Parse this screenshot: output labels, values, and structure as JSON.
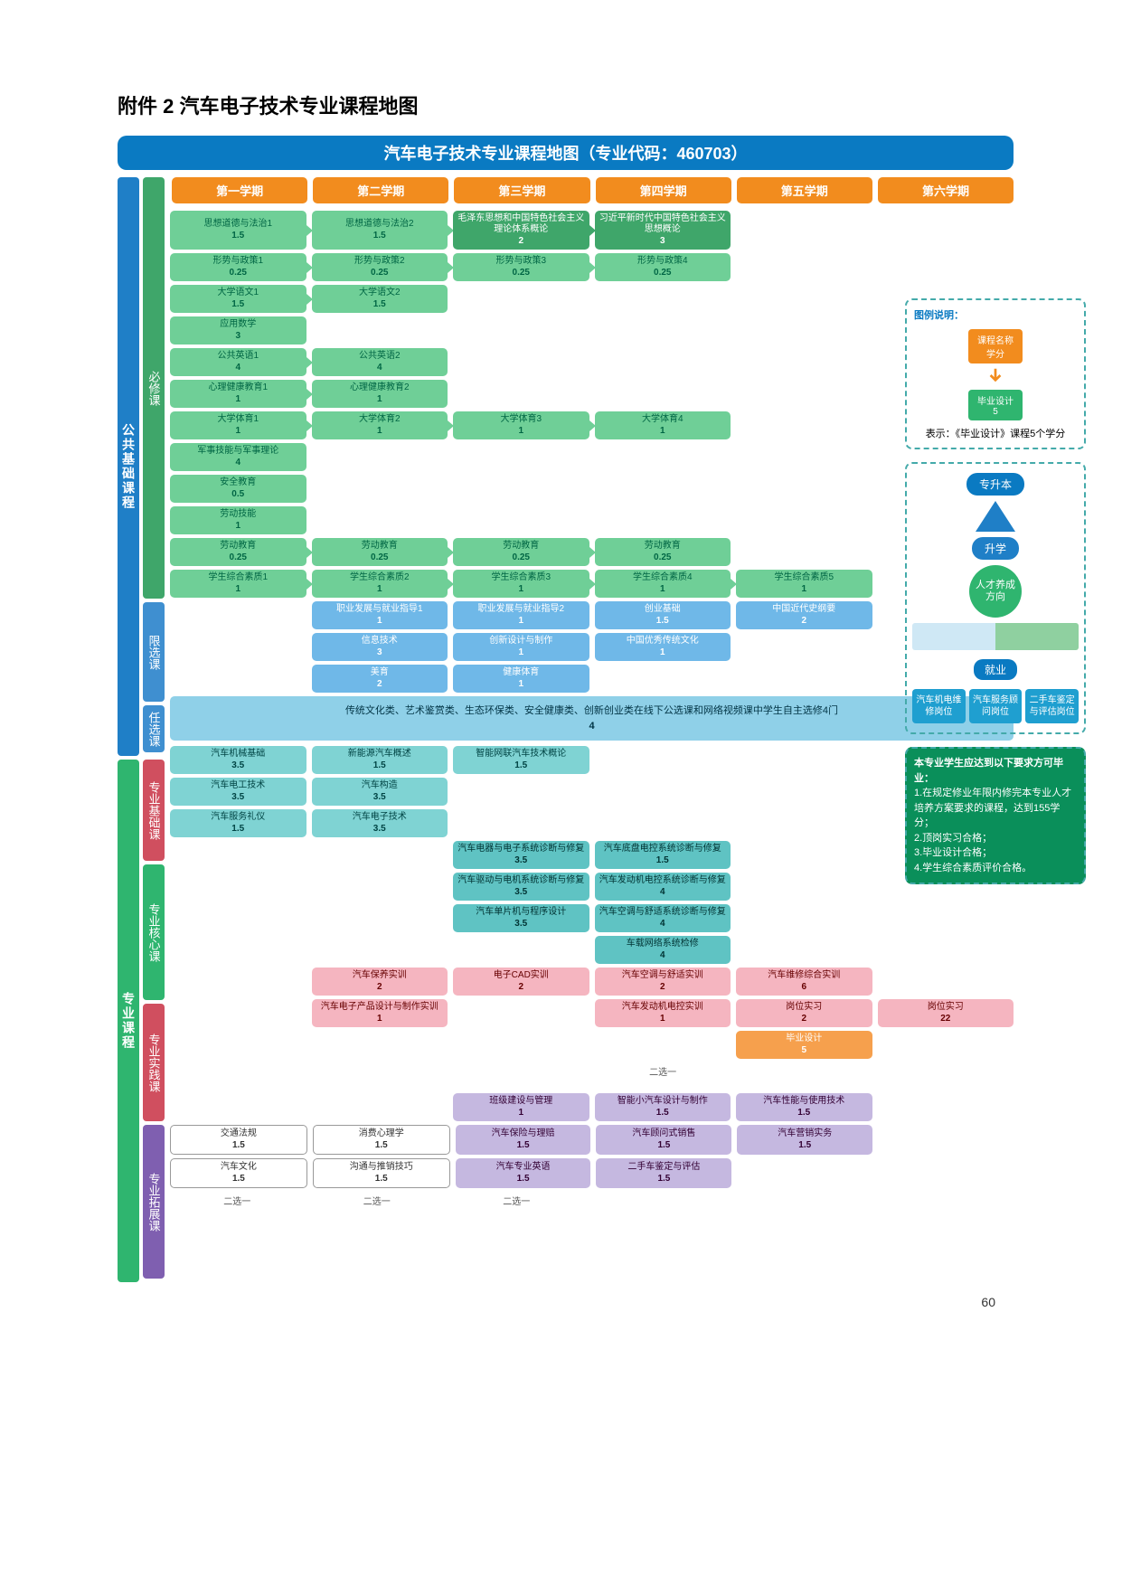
{
  "doc_title": "附件 2 汽车电子技术专业课程地图",
  "main_title": "汽车电子技术专业课程地图（专业代码：460703）",
  "page_number": "60",
  "semesters": [
    "第一学期",
    "第二学期",
    "第三学期",
    "第四学期",
    "第五学期",
    "第六学期"
  ],
  "rails": {
    "public": {
      "label": "公共基础课程",
      "color": "#1f7fc7"
    },
    "major": {
      "label": "专业课程",
      "color": "#2fb56f"
    },
    "sub": {
      "required": {
        "label": "必修课",
        "color": "#3fa66a"
      },
      "limited": {
        "label": "限选课",
        "color": "#3f8fd0"
      },
      "optional": {
        "label": "任选课",
        "color": "#3f8fd0"
      },
      "basic": {
        "label": "专业基础课",
        "color": "#d04f5f"
      },
      "core": {
        "label": "专业核心课",
        "color": "#2fb56f"
      },
      "practice": {
        "label": "专业实践课",
        "color": "#d04f5f"
      },
      "extend": {
        "label": "专业拓展课",
        "color": "#7f5fb0"
      }
    }
  },
  "colors": {
    "green": "#6fcf97",
    "dgreen": "#3fa66a",
    "teal": "#7fd3d3",
    "teal2": "#5fc3c3",
    "ltblue": "#a8d8f0",
    "pink": "#f5b5c0",
    "purple": "#c5b8e0",
    "blue": "#6fb8e8",
    "orange": "#f28c1e",
    "white": "#ffffff"
  },
  "required_rows": [
    [
      {
        "n": "思想道德与法治1",
        "c": "1.5",
        "cls": "c-green",
        "a": 1
      },
      {
        "n": "思想道德与法治2",
        "c": "1.5",
        "cls": "c-green",
        "a": 1
      },
      {
        "n": "毛泽东思想和中国特色社会主义理论体系概论",
        "c": "2",
        "cls": "c-dgreen",
        "a": 1
      },
      {
        "n": "习近平新时代中国特色社会主义思想概论",
        "c": "3",
        "cls": "c-dgreen"
      },
      null,
      null
    ],
    [
      {
        "n": "形势与政策1",
        "c": "0.25",
        "cls": "c-green",
        "a": 1
      },
      {
        "n": "形势与政策2",
        "c": "0.25",
        "cls": "c-green",
        "a": 1
      },
      {
        "n": "形势与政策3",
        "c": "0.25",
        "cls": "c-green",
        "a": 1
      },
      {
        "n": "形势与政策4",
        "c": "0.25",
        "cls": "c-green"
      },
      null,
      null
    ],
    [
      {
        "n": "大学语文1",
        "c": "1.5",
        "cls": "c-green",
        "a": 1
      },
      {
        "n": "大学语文2",
        "c": "1.5",
        "cls": "c-green"
      },
      null,
      null,
      null,
      null
    ],
    [
      {
        "n": "应用数学",
        "c": "3",
        "cls": "c-green"
      },
      null,
      null,
      null,
      null,
      null
    ],
    [
      {
        "n": "公共英语1",
        "c": "4",
        "cls": "c-green",
        "a": 1
      },
      {
        "n": "公共英语2",
        "c": "4",
        "cls": "c-green"
      },
      null,
      null,
      null,
      null
    ],
    [
      {
        "n": "心理健康教育1",
        "c": "1",
        "cls": "c-green",
        "a": 1
      },
      {
        "n": "心理健康教育2",
        "c": "1",
        "cls": "c-green"
      },
      null,
      null,
      null,
      null
    ],
    [
      {
        "n": "大学体育1",
        "c": "1",
        "cls": "c-green",
        "a": 1
      },
      {
        "n": "大学体育2",
        "c": "1",
        "cls": "c-green",
        "a": 1
      },
      {
        "n": "大学体育3",
        "c": "1",
        "cls": "c-green",
        "a": 1
      },
      {
        "n": "大学体育4",
        "c": "1",
        "cls": "c-green"
      },
      null,
      null
    ],
    [
      {
        "n": "军事技能与军事理论",
        "c": "4",
        "cls": "c-green"
      },
      null,
      null,
      null,
      null,
      null
    ],
    [
      {
        "n": "安全教育",
        "c": "0.5",
        "cls": "c-green"
      },
      null,
      null,
      null,
      null,
      null
    ],
    [
      {
        "n": "劳动技能",
        "c": "1",
        "cls": "c-green"
      },
      null,
      null,
      null,
      null,
      null
    ],
    [
      {
        "n": "劳动教育",
        "c": "0.25",
        "cls": "c-green",
        "a": 1
      },
      {
        "n": "劳动教育",
        "c": "0.25",
        "cls": "c-green",
        "a": 1
      },
      {
        "n": "劳动教育",
        "c": "0.25",
        "cls": "c-green",
        "a": 1
      },
      {
        "n": "劳动教育",
        "c": "0.25",
        "cls": "c-green"
      },
      null,
      null
    ],
    [
      {
        "n": "学生综合素质1",
        "c": "1",
        "cls": "c-green",
        "a": 1
      },
      {
        "n": "学生综合素质2",
        "c": "1",
        "cls": "c-green",
        "a": 1
      },
      {
        "n": "学生综合素质3",
        "c": "1",
        "cls": "c-green",
        "a": 1
      },
      {
        "n": "学生综合素质4",
        "c": "1",
        "cls": "c-green",
        "a": 1
      },
      {
        "n": "学生综合素质5",
        "c": "1",
        "cls": "c-green"
      },
      null
    ]
  ],
  "limited_rows": [
    [
      null,
      {
        "n": "职业发展与就业指导1",
        "c": "1",
        "cls": "c-blue"
      },
      {
        "n": "职业发展与就业指导2",
        "c": "1",
        "cls": "c-blue"
      },
      {
        "n": "创业基础",
        "c": "1.5",
        "cls": "c-blue"
      },
      {
        "n": "中国近代史纲要",
        "c": "2",
        "cls": "c-blue"
      },
      null
    ],
    [
      null,
      {
        "n": "信息技术",
        "c": "3",
        "cls": "c-blue"
      },
      {
        "n": "创新设计与制作",
        "c": "1",
        "cls": "c-blue"
      },
      {
        "n": "中国优秀传统文化",
        "c": "1",
        "cls": "c-blue"
      },
      null,
      null
    ],
    [
      null,
      {
        "n": "美育",
        "c": "2",
        "cls": "c-blue"
      },
      {
        "n": "健康体育",
        "c": "1",
        "cls": "c-blue"
      },
      null,
      null,
      null
    ]
  ],
  "elective_text": "传统文化类、艺术鉴赏类、生态环保类、安全健康类、创新创业类在线下公选课和网络视频课中学生自主选修4门",
  "elective_credit": "4",
  "basic_rows": [
    [
      {
        "n": "汽车机械基础",
        "c": "3.5",
        "cls": "c-teal"
      },
      {
        "n": "新能源汽车概述",
        "c": "1.5",
        "cls": "c-teal"
      },
      {
        "n": "智能网联汽车技术概论",
        "c": "1.5",
        "cls": "c-teal"
      },
      null,
      null,
      null
    ],
    [
      {
        "n": "汽车电工技术",
        "c": "3.5",
        "cls": "c-teal"
      },
      {
        "n": "汽车构造",
        "c": "3.5",
        "cls": "c-teal"
      },
      null,
      null,
      null,
      null
    ],
    [
      {
        "n": "汽车服务礼仪",
        "c": "1.5",
        "cls": "c-teal"
      },
      {
        "n": "汽车电子技术",
        "c": "3.5",
        "cls": "c-teal"
      },
      null,
      null,
      null,
      null
    ]
  ],
  "core_rows": [
    [
      null,
      null,
      {
        "n": "汽车电器与电子系统诊断与修复",
        "c": "3.5",
        "cls": "c-teal2"
      },
      {
        "n": "汽车底盘电控系统诊断与修复",
        "c": "1.5",
        "cls": "c-teal2"
      },
      null,
      null
    ],
    [
      null,
      null,
      {
        "n": "汽车驱动与电机系统诊断与修复",
        "c": "3.5",
        "cls": "c-teal2"
      },
      {
        "n": "汽车发动机电控系统诊断与修复",
        "c": "4",
        "cls": "c-teal2"
      },
      null,
      null
    ],
    [
      null,
      null,
      {
        "n": "汽车单片机与程序设计",
        "c": "3.5",
        "cls": "c-teal2"
      },
      {
        "n": "汽车空调与舒适系统诊断与修复",
        "c": "4",
        "cls": "c-teal2"
      },
      null,
      null
    ],
    [
      null,
      null,
      null,
      {
        "n": "车载网络系统检修",
        "c": "4",
        "cls": "c-teal2"
      },
      null,
      null
    ]
  ],
  "practice_rows": [
    [
      null,
      {
        "n": "汽车保养实训",
        "c": "2",
        "cls": "c-pink"
      },
      {
        "n": "电子CAD实训",
        "c": "2",
        "cls": "c-pink"
      },
      {
        "n": "汽车空调与舒适实训",
        "c": "2",
        "cls": "c-pink"
      },
      {
        "n": "汽车维修综合实训",
        "c": "6",
        "cls": "c-pink"
      },
      null
    ],
    [
      null,
      {
        "n": "汽车电子产品设计与制作实训",
        "c": "1",
        "cls": "c-pink"
      },
      null,
      {
        "n": "汽车发动机电控实训",
        "c": "1",
        "cls": "c-pink"
      },
      {
        "n": "岗位实习",
        "c": "2",
        "cls": "c-pink"
      },
      {
        "n": "岗位实习",
        "c": "22",
        "cls": "c-pink"
      }
    ],
    [
      null,
      null,
      null,
      null,
      {
        "n": "毕业设计",
        "c": "5",
        "cls": "c-orange"
      },
      null
    ]
  ],
  "extend_rows": [
    [
      null,
      null,
      {
        "n": "班级建设与管理",
        "c": "1",
        "cls": "c-purple"
      },
      {
        "n": "智能小汽车设计与制作",
        "c": "1.5",
        "cls": "c-purple"
      },
      {
        "n": "汽车性能与使用技术",
        "c": "1.5",
        "cls": "c-purple"
      },
      null
    ],
    [
      {
        "n": "交通法规",
        "c": "1.5",
        "cls": "c-white"
      },
      {
        "n": "消费心理学",
        "c": "1.5",
        "cls": "c-white"
      },
      {
        "n": "汽车保险与理赔",
        "c": "1.5",
        "cls": "c-purple"
      },
      {
        "n": "汽车顾问式销售",
        "c": "1.5",
        "cls": "c-purple"
      },
      {
        "n": "汽车营销实务",
        "c": "1.5",
        "cls": "c-purple"
      },
      null
    ],
    [
      {
        "n": "汽车文化",
        "c": "1.5",
        "cls": "c-white"
      },
      {
        "n": "沟通与推销技巧",
        "c": "1.5",
        "cls": "c-white"
      },
      {
        "n": "汽车专业英语",
        "c": "1.5",
        "cls": "c-purple"
      },
      {
        "n": "二手车鉴定与评估",
        "c": "1.5",
        "cls": "c-purple"
      },
      null,
      null
    ]
  ],
  "extend_labels": {
    "two_one": "二选一",
    "two_one_b": "二选一"
  },
  "legend": {
    "title": "图例说明：",
    "sample_name": "课程名称",
    "sample_credit": "学分",
    "sample2_name": "毕业设计",
    "sample2_credit": "5",
    "desc": "表示：《毕业设计》课程5个学分"
  },
  "path": {
    "upgrade": "专升本",
    "study": "升学",
    "talent": "人才养成\n方向",
    "employ": "就业",
    "jobs": [
      "汽车机电维修岗位",
      "汽车服务顾问岗位",
      "二手车鉴定与评估岗位"
    ]
  },
  "requirements": {
    "heading": "本专业学生应达到以下要求方可毕业：",
    "items": [
      "1.在规定修业年限内修完本专业人才培养方案要求的课程，达到155学分；",
      "2.顶岗实习合格；",
      "3.毕业设计合格；",
      "4.学生综合素质评价合格。"
    ]
  }
}
